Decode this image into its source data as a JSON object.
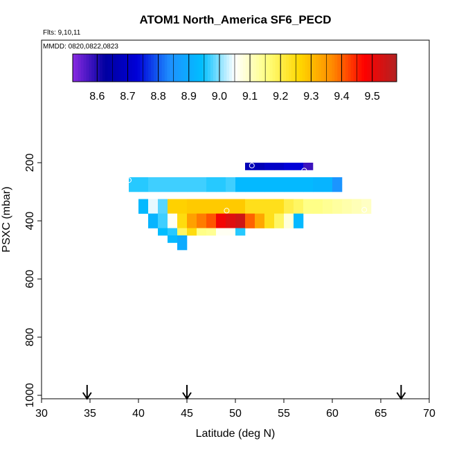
{
  "chart_data": {
    "type": "heatmap",
    "title": "ATOM1 North_America SF6_PECD",
    "flights_label": "Flts: 9,10,11",
    "dates_label": "MMDD: 0820,0822,0823",
    "xlabel": "Latitude (deg N)",
    "ylabel": "PSXC (mbar)",
    "xlim": [
      30,
      70
    ],
    "ylim": [
      1000,
      0
    ],
    "x_ticks": [
      30,
      35,
      40,
      45,
      50,
      55,
      60,
      65,
      70
    ],
    "y_ticks": [
      200,
      400,
      600,
      800,
      1000
    ],
    "colorbar": {
      "range": [
        8.52,
        9.58
      ],
      "tick_values": [
        8.6,
        8.7,
        8.8,
        8.9,
        9.0,
        9.1,
        9.2,
        9.3,
        9.4,
        9.5
      ],
      "tick_labels": [
        "8.6",
        "8.7",
        "8.8",
        "8.9",
        "9.0",
        "9.1",
        "9.2",
        "9.3",
        "9.4",
        "9.5"
      ],
      "colors": [
        "#8a2be2",
        "#0000a0",
        "#0000d8",
        "#1e90ff",
        "#00bfff",
        "#ffffff",
        "#ffff80",
        "#ffd700",
        "#ff8c00",
        "#ff0000",
        "#b22222"
      ]
    },
    "bin_width_deg": 1,
    "bin_height_mbar": 25,
    "rows": [
      {
        "p": 212.5,
        "lat0": 51,
        "values": [
          8.67,
          8.67,
          8.7,
          8.7,
          8.73,
          8.73,
          8.58
        ]
      },
      {
        "p": 262.5,
        "lat0": 39,
        "values": [
          8.96,
          8.96,
          8.97,
          8.97,
          8.97,
          8.97,
          8.97,
          8.97,
          8.96,
          8.96,
          8.97,
          8.93,
          8.93,
          8.93,
          8.93,
          8.93,
          8.93,
          8.93,
          8.93,
          8.92,
          8.92,
          8.85
        ]
      },
      {
        "p": 287.5,
        "lat0": 39,
        "values": [
          8.96,
          8.96,
          8.97,
          8.97,
          8.97,
          8.97,
          8.97,
          8.97,
          8.96,
          8.96,
          8.97,
          8.93,
          8.93,
          8.93,
          8.93,
          8.93,
          8.93,
          8.93,
          8.93,
          8.92,
          8.92,
          8.85
        ]
      },
      {
        "p": 337.5,
        "lat0": 40,
        "values": [
          8.93,
          9.04,
          8.98,
          9.27,
          9.27,
          9.28,
          9.28,
          9.28,
          9.28,
          9.28,
          9.28,
          9.24,
          9.24,
          9.24,
          9.24,
          9.2,
          9.18,
          9.15,
          9.15,
          9.14,
          9.13,
          9.12,
          9.11,
          9.1
        ]
      },
      {
        "p": 362.5,
        "lat0": 40,
        "values": [
          8.93,
          9.04,
          8.98,
          9.27,
          9.27,
          9.28,
          9.28,
          9.28,
          9.28,
          9.28,
          9.28,
          9.24,
          9.24,
          9.24,
          9.24,
          9.2,
          9.18,
          9.15,
          9.15,
          9.14,
          9.13,
          9.12,
          9.11,
          9.1
        ]
      },
      {
        "p": 387.5,
        "lat0": 41,
        "values": [
          8.92,
          8.97,
          9.06,
          9.25,
          9.34,
          9.38,
          9.41,
          9.49,
          9.52,
          9.54,
          9.4,
          9.33,
          9.24,
          9.18,
          9.08,
          8.93
        ]
      },
      {
        "p": 412.5,
        "lat0": 41,
        "values": [
          8.92,
          8.97,
          9.06,
          9.25,
          9.34,
          9.38,
          9.41,
          9.49,
          9.52,
          9.54,
          9.4,
          9.33,
          9.24,
          9.18,
          9.08,
          8.93
        ]
      },
      {
        "p": 437.5,
        "lat0": 42,
        "values": [
          8.94,
          8.96,
          9.18,
          9.25,
          9.15,
          9.14,
          9.06,
          9.06,
          8.96
        ]
      },
      {
        "p": 462.5,
        "lat0": 43,
        "values": [
          8.93,
          8.9
        ]
      },
      {
        "p": 487.5,
        "lat0": 44,
        "values": [
          8.9
        ]
      }
    ],
    "flight_track_points": [
      {
        "lat": 39.0,
        "p": 260
      },
      {
        "lat": 51.7,
        "p": 210
      },
      {
        "lat": 57.1,
        "p": 227
      },
      {
        "lat": 49.1,
        "p": 365
      },
      {
        "lat": 45.5,
        "p": 465
      },
      {
        "lat": 63.3,
        "p": 362
      }
    ],
    "location_arrows_lat": [
      34.7,
      45.0,
      67.1
    ]
  }
}
